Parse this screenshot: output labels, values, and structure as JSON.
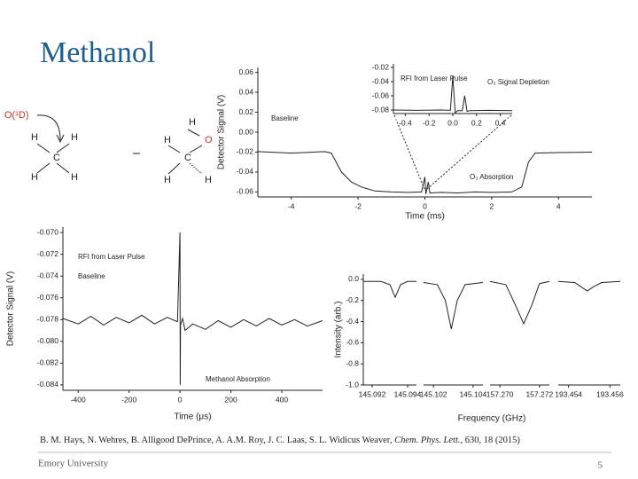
{
  "title": "Methanol",
  "diagram": {
    "labels": [
      "O(¹D)",
      "H",
      "H",
      "C",
      "H",
      "H",
      "H",
      "H",
      "O",
      "C",
      "H",
      "H"
    ]
  },
  "chart_data": [
    {
      "type": "line",
      "xlabel": "Time (ms)",
      "ylabel": "Detector Signal (V)",
      "color": "#222",
      "xlim": [
        -5,
        5
      ],
      "ylim": [
        -0.065,
        0.065
      ],
      "xticks": [
        -4,
        -2,
        {
          "value": 0,
          "label": "0"
        },
        2,
        4
      ],
      "yticks": [
        0.06,
        0.04,
        0.02,
        {
          "value": 0,
          "label": "0.00"
        },
        -0.02,
        -0.04,
        -0.06
      ],
      "annotations": [
        "Baseline",
        "O₃ Absorption"
      ],
      "x": [
        -5,
        -4,
        -3,
        -2.8,
        -2.5,
        -2.2,
        -1.9,
        -1.7,
        -1.5,
        -1,
        -0.5,
        -0.1,
        0,
        0.03,
        0.1,
        0.15,
        0.5,
        1,
        1.5,
        2,
        2.6,
        2.9,
        3.1,
        3.3,
        4,
        5
      ],
      "values": [
        -0.0195,
        -0.021,
        -0.0195,
        -0.021,
        -0.04,
        -0.05,
        -0.055,
        -0.057,
        -0.059,
        -0.06,
        -0.0605,
        -0.06,
        -0.045,
        -0.062,
        -0.05,
        -0.061,
        -0.0605,
        -0.061,
        -0.06,
        -0.0605,
        -0.06,
        -0.055,
        -0.03,
        -0.021,
        -0.0205,
        -0.02
      ]
    },
    {
      "type": "line",
      "color": "#222",
      "xlim": [
        -0.5,
        0.5
      ],
      "ylim": [
        -0.085,
        -0.015
      ],
      "xticks": [
        -0.4,
        -0.2,
        {
          "value": 0,
          "label": "0.0"
        },
        0.2,
        0.4
      ],
      "yticks": [
        -0.02,
        -0.04,
        -0.06,
        -0.08
      ],
      "annotations": [
        "RFI from Laser Pulse",
        "O₃ Signal Depletion"
      ],
      "x": [
        -0.5,
        -0.3,
        -0.1,
        -0.02,
        0,
        0.02,
        0.04,
        0.08,
        0.1,
        0.12,
        0.14,
        0.3,
        0.5
      ],
      "values": [
        -0.08,
        -0.0805,
        -0.08,
        -0.0805,
        -0.032,
        -0.084,
        -0.081,
        -0.081,
        -0.06,
        -0.082,
        -0.081,
        -0.0805,
        -0.081
      ]
    },
    {
      "type": "line",
      "xlabel": "Time (μs)",
      "ylabel": "Detector Signal (V)",
      "color": "#222",
      "xlim": [
        -460,
        560
      ],
      "ylim": [
        -0.0845,
        -0.0695
      ],
      "xticks": [
        -400,
        -200,
        0,
        200,
        400
      ],
      "yticks": [
        {
          "value": -0.07,
          "label": "-0.070"
        },
        -0.072,
        -0.074,
        -0.076,
        -0.078,
        {
          "value": -0.08,
          "label": "-0.080"
        },
        -0.082,
        -0.084
      ],
      "annotations": [
        "RFI from Laser Pulse",
        "Baseline",
        "Methanol Absorption"
      ],
      "x": [
        -460,
        -400,
        -350,
        -300,
        -250,
        -200,
        -150,
        -100,
        -50,
        -10,
        0,
        1,
        2,
        10,
        20,
        30,
        50,
        100,
        150,
        200,
        250,
        300,
        350,
        400,
        450,
        500,
        560
      ],
      "values": [
        -0.0779,
        -0.0784,
        -0.0777,
        -0.0785,
        -0.0778,
        -0.0783,
        -0.0776,
        -0.0784,
        -0.0778,
        -0.0782,
        -0.07,
        -0.084,
        -0.0785,
        -0.0779,
        -0.079,
        -0.0788,
        -0.0784,
        -0.0789,
        -0.0781,
        -0.0787,
        -0.078,
        -0.0786,
        -0.0779,
        -0.0785,
        -0.078,
        -0.0786,
        -0.0781
      ]
    },
    {
      "type": "panels",
      "xlabel": "Frequency (GHz)",
      "ylabel": "Intensity (arb.)",
      "color": "#222",
      "ylim": [
        -1,
        0.05
      ],
      "yticks": [
        {
          "value": 0,
          "label": "0.0"
        },
        -0.2,
        -0.4,
        -0.6,
        -0.8,
        {
          "value": -1,
          "label": "-1.0"
        }
      ],
      "panels": [
        {
          "xlim": [
            145.0915,
            145.0945
          ],
          "xticks": [
            145.092,
            145.094
          ],
          "x": [
            145.0915,
            145.0925,
            145.093,
            145.0933,
            145.0936,
            145.094,
            145.0945
          ],
          "values": [
            -0.02,
            -0.02,
            -0.05,
            -0.17,
            -0.05,
            -0.02,
            -0.02
          ]
        },
        {
          "xlim": [
            145.1015,
            145.1045
          ],
          "xticks": [
            145.102,
            145.104
          ],
          "x": [
            145.1015,
            145.1022,
            145.1026,
            145.1029,
            145.1032,
            145.1036,
            145.1045
          ],
          "values": [
            -0.03,
            -0.05,
            -0.2,
            -0.47,
            -0.2,
            -0.05,
            -0.03
          ]
        },
        {
          "xlim": [
            157.2695,
            157.2725
          ],
          "xticks": [
            {
              "value": 157.27,
              "label": "157.270"
            },
            157.272
          ],
          "x": [
            157.2695,
            157.2703,
            157.2708,
            157.2712,
            157.2716,
            157.272,
            157.2725
          ],
          "values": [
            -0.02,
            -0.05,
            -0.25,
            -0.42,
            -0.25,
            -0.04,
            -0.02
          ]
        },
        {
          "xlim": [
            193.4535,
            193.4565
          ],
          "xticks": [
            193.454,
            193.456
          ],
          "x": [
            193.4535,
            193.4543,
            193.4546,
            193.4549,
            193.4552,
            193.4556,
            193.4565
          ],
          "values": [
            -0.02,
            -0.03,
            -0.07,
            -0.11,
            -0.07,
            -0.03,
            -0.02
          ]
        }
      ]
    }
  ],
  "citation": {
    "authors": "B. M. Hays, N. Wehres, B. Alligood DePrince, A. A.M. Roy, J. C. Laas, S. L. Widicus Weaver, ",
    "journal": "Chem. Phys. Lett.",
    "rest": ", 630, 18 (2015)"
  },
  "footer": "Emory University",
  "page_number": "5"
}
